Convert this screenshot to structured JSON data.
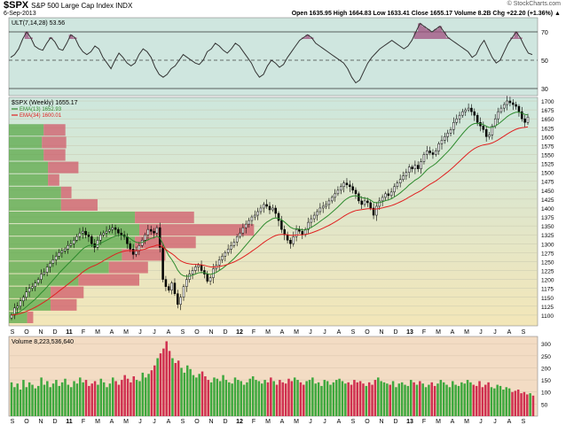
{
  "header": {
    "symbol": "$SPX",
    "description": "S&P 500 Large Cap Index INDX",
    "date": "6-Sep-2013",
    "copyright": "© StockCharts.com",
    "quote": "Open 1635.95  High 1664.83  Low 1633.41  Close 1655.17  Volume 8.2B  Chg +22.20 (+1.36%) ▲"
  },
  "colors": {
    "ult_bg": "#cfe6df",
    "price_bg_top": "#cde7dd",
    "price_bg_bottom": "#f3e6b8",
    "volume_bg": "#f3dcc4",
    "ema13": "#2e8b2e",
    "ema34": "#e02020",
    "up_volume": "#3ea83e",
    "down_volume": "#d03050",
    "vbp_up": "#5aa84a",
    "vbp_down": "#d05a6a"
  },
  "chart_data": [
    {
      "type": "line",
      "panel": "ultimate-oscillator",
      "label": "ULT(7,14,28) 53.56",
      "ylim": [
        25,
        80
      ],
      "y_ticks": [
        30,
        50,
        70
      ],
      "reference_lines": [
        30,
        50,
        70
      ],
      "values": [
        52,
        54,
        58,
        65,
        70,
        66,
        60,
        58,
        57,
        62,
        66,
        63,
        58,
        57,
        62,
        68,
        66,
        60,
        56,
        54,
        56,
        60,
        58,
        52,
        48,
        44,
        50,
        55,
        52,
        48,
        46,
        48,
        54,
        58,
        56,
        52,
        45,
        40,
        38,
        40,
        44,
        46,
        50,
        54,
        52,
        50,
        48,
        47,
        50,
        56,
        58,
        62,
        60,
        57,
        55,
        58,
        62,
        60,
        56,
        52,
        48,
        42,
        38,
        40,
        46,
        50,
        48,
        45,
        47,
        52,
        56,
        60,
        64,
        66,
        68,
        66,
        62,
        60,
        58,
        56,
        54,
        52,
        50,
        48,
        44,
        38,
        34,
        36,
        42,
        48,
        52,
        55,
        58,
        60,
        62,
        64,
        62,
        60,
        58,
        60,
        64,
        70,
        76,
        74,
        72,
        70,
        72,
        74,
        70,
        66,
        64,
        62,
        60,
        58,
        56,
        52,
        54,
        60,
        64,
        58,
        52,
        48,
        50,
        56,
        62,
        66,
        70,
        66,
        60,
        55,
        54
      ]
    },
    {
      "type": "candlestick",
      "panel": "price",
      "label": "$SPX (Weekly) 1655.17",
      "legend": [
        {
          "name": "EMA(13) 1652.93",
          "color": "#2e8b2e"
        },
        {
          "name": "EMA(34) 1600.01",
          "color": "#e02020"
        }
      ],
      "ylim": [
        1070,
        1710
      ],
      "y_ticks": [
        1100,
        1125,
        1150,
        1175,
        1200,
        1225,
        1250,
        1275,
        1300,
        1325,
        1350,
        1375,
        1400,
        1425,
        1450,
        1475,
        1500,
        1525,
        1550,
        1575,
        1600,
        1625,
        1650,
        1675,
        1700
      ],
      "x_labels": [
        "S",
        "O",
        "N",
        "D",
        "11",
        "F",
        "M",
        "A",
        "M",
        "J",
        "J",
        "A",
        "S",
        "O",
        "N",
        "D",
        "12",
        "F",
        "M",
        "A",
        "M",
        "J",
        "J",
        "A",
        "S",
        "O",
        "N",
        "D",
        "13",
        "F",
        "M",
        "A",
        "M",
        "J",
        "J",
        "A",
        "S"
      ],
      "x_label_bold": [
        "11",
        "12",
        "13"
      ],
      "closes": [
        1100,
        1120,
        1125,
        1140,
        1150,
        1165,
        1175,
        1180,
        1190,
        1200,
        1215,
        1220,
        1235,
        1245,
        1255,
        1265,
        1275,
        1280,
        1285,
        1295,
        1300,
        1310,
        1320,
        1330,
        1335,
        1325,
        1320,
        1300,
        1290,
        1310,
        1325,
        1330,
        1335,
        1340,
        1345,
        1340,
        1330,
        1325,
        1320,
        1300,
        1285,
        1270,
        1280,
        1295,
        1310,
        1325,
        1340,
        1335,
        1330,
        1345,
        1290,
        1200,
        1180,
        1170,
        1190,
        1160,
        1130,
        1150,
        1180,
        1200,
        1215,
        1225,
        1235,
        1240,
        1225,
        1215,
        1195,
        1205,
        1230,
        1240,
        1255,
        1265,
        1275,
        1285,
        1295,
        1305,
        1320,
        1330,
        1345,
        1355,
        1365,
        1375,
        1380,
        1390,
        1400,
        1410,
        1405,
        1395,
        1400,
        1385,
        1365,
        1340,
        1325,
        1310,
        1300,
        1320,
        1340,
        1335,
        1325,
        1340,
        1360,
        1370,
        1380,
        1390,
        1400,
        1405,
        1410,
        1420,
        1430,
        1440,
        1450,
        1460,
        1470,
        1465,
        1460,
        1450,
        1440,
        1420,
        1410,
        1420,
        1415,
        1400,
        1380,
        1405,
        1420,
        1430,
        1440,
        1435,
        1445,
        1460,
        1470,
        1480,
        1490,
        1500,
        1515,
        1510,
        1520,
        1510,
        1530,
        1550,
        1560,
        1555,
        1550,
        1560,
        1580,
        1590,
        1600,
        1610,
        1620,
        1640,
        1650,
        1660,
        1670,
        1675,
        1680,
        1670,
        1660,
        1640,
        1630,
        1620,
        1600,
        1605,
        1630,
        1650,
        1670,
        1680,
        1690,
        1700,
        1695,
        1690,
        1685,
        1670,
        1650,
        1640,
        1655
      ]
    },
    {
      "type": "bar",
      "panel": "volume",
      "label": "Volume 8,223,536,640",
      "ylim": [
        0,
        330
      ],
      "y_ticks": [
        50,
        100,
        150,
        200,
        250,
        300
      ],
      "values": [
        140,
        120,
        135,
        110,
        150,
        120,
        140,
        130,
        115,
        125,
        160,
        130,
        145,
        120,
        135,
        150,
        125,
        140,
        155,
        130,
        120,
        145,
        135,
        160,
        140,
        150,
        125,
        135,
        145,
        130,
        155,
        140,
        120,
        135,
        160,
        145,
        130,
        150,
        170,
        155,
        140,
        165,
        150,
        145,
        180,
        160,
        175,
        190,
        210,
        240,
        260,
        280,
        310,
        270,
        240,
        220,
        230,
        200,
        180,
        210,
        195,
        170,
        160,
        175,
        185,
        165,
        150,
        140,
        160,
        155,
        145,
        170,
        150,
        140,
        135,
        160,
        150,
        145,
        130,
        140,
        155,
        165,
        150,
        145,
        135,
        150,
        140,
        160,
        145,
        130,
        150,
        140,
        135,
        155,
        145,
        160,
        150,
        140,
        130,
        145,
        150,
        160,
        135,
        140,
        125,
        150,
        145,
        130,
        140,
        150,
        155,
        145,
        135,
        140,
        130,
        150,
        140,
        145,
        135,
        125,
        140,
        130,
        150,
        160,
        145,
        140,
        135,
        130,
        145,
        120,
        135,
        140,
        130,
        125,
        150,
        140,
        130,
        145,
        135,
        120,
        130,
        140,
        125,
        135,
        150,
        140,
        130,
        120,
        145,
        130,
        125,
        140,
        135,
        150,
        140,
        130,
        125,
        145,
        120,
        130,
        140,
        120,
        115,
        130,
        125,
        110,
        120,
        115,
        100,
        105,
        110,
        95,
        100,
        90,
        95,
        85
      ]
    },
    {
      "type": "bar",
      "panel": "volume-by-price",
      "orientation": "horizontal",
      "zones": [
        {
          "low": 1075,
          "high": 1110,
          "up": 21,
          "down": 7
        },
        {
          "low": 1110,
          "high": 1145,
          "up": 48,
          "down": 30
        },
        {
          "low": 1145,
          "high": 1180,
          "up": 48,
          "down": 38
        },
        {
          "low": 1180,
          "high": 1215,
          "up": 80,
          "down": 70
        },
        {
          "low": 1215,
          "high": 1250,
          "up": 115,
          "down": 45
        },
        {
          "low": 1250,
          "high": 1285,
          "up": 130,
          "down": 50
        },
        {
          "low": 1285,
          "high": 1320,
          "up": 145,
          "down": 70
        },
        {
          "low": 1320,
          "high": 1355,
          "up": 150,
          "down": 132
        },
        {
          "low": 1355,
          "high": 1390,
          "up": 145,
          "down": 68
        },
        {
          "low": 1390,
          "high": 1425,
          "up": 60,
          "down": 42
        },
        {
          "low": 1425,
          "high": 1460,
          "up": 60,
          "down": 12
        },
        {
          "low": 1460,
          "high": 1495,
          "up": 45,
          "down": 13
        },
        {
          "low": 1495,
          "high": 1530,
          "up": 45,
          "down": 35
        },
        {
          "low": 1530,
          "high": 1565,
          "up": 40,
          "down": 25
        },
        {
          "low": 1565,
          "high": 1600,
          "up": 38,
          "down": 28
        },
        {
          "low": 1600,
          "high": 1635,
          "up": 40,
          "down": 25
        }
      ]
    }
  ]
}
